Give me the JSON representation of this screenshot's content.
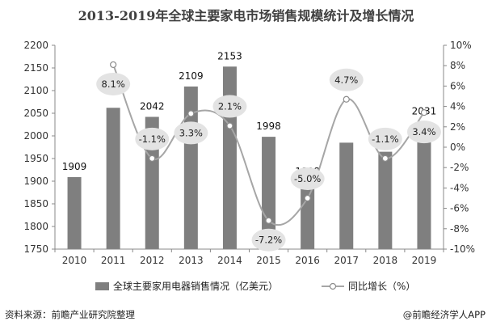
{
  "title": "2013-2019年全球主要家电市场销售规模统计及增长情况",
  "source": "资料来源：前瞻产业研究院整理",
  "credit": "@前瞻经济学人APP",
  "colors": {
    "bar": "#7f7f7f",
    "line": "#a6a6a6",
    "label_bubble": "#e3e3e3",
    "marker_fill": "#ffffff"
  },
  "chart_data": {
    "type": "bar",
    "categories": [
      "2010",
      "2011",
      "2012",
      "2013",
      "2014",
      "2015",
      "2016",
      "2017",
      "2018",
      "2019"
    ],
    "series": [
      {
        "name": "全球主要家用电器销售情况（亿美元）",
        "type": "bar",
        "axis": "left",
        "values": [
          1909,
          2062,
          2042,
          2109,
          2153,
          1998,
          1898,
          1985,
          1965,
          2031
        ],
        "labels": [
          "1909",
          "",
          "2042",
          "2109",
          "2153",
          "1998",
          "1898",
          "",
          "1965",
          "2031"
        ]
      },
      {
        "name": "同比增长（%）",
        "type": "line",
        "axis": "right",
        "values": [
          null,
          8.1,
          -1.1,
          3.3,
          2.1,
          -7.2,
          -5.0,
          4.7,
          -1.1,
          3.4
        ],
        "labels": [
          "",
          "8.1%",
          "-1.1%",
          "3.3%",
          "2.1%",
          "-7.2%",
          "-5.0%",
          "4.7%",
          "-1.1%",
          "3.4%"
        ]
      }
    ],
    "ylim_left": [
      1750,
      2200
    ],
    "yticks_left": [
      "1750",
      "1800",
      "1850",
      "1900",
      "1950",
      "2000",
      "2050",
      "2100",
      "2150",
      "2200"
    ],
    "ylim_right": [
      -10,
      10
    ],
    "yticks_right": [
      "-10%",
      "-8%",
      "-6%",
      "-4%",
      "-2%",
      "0%",
      "2%",
      "4%",
      "6%",
      "8%",
      "10%"
    ],
    "legend": "bottom",
    "grid": false
  }
}
